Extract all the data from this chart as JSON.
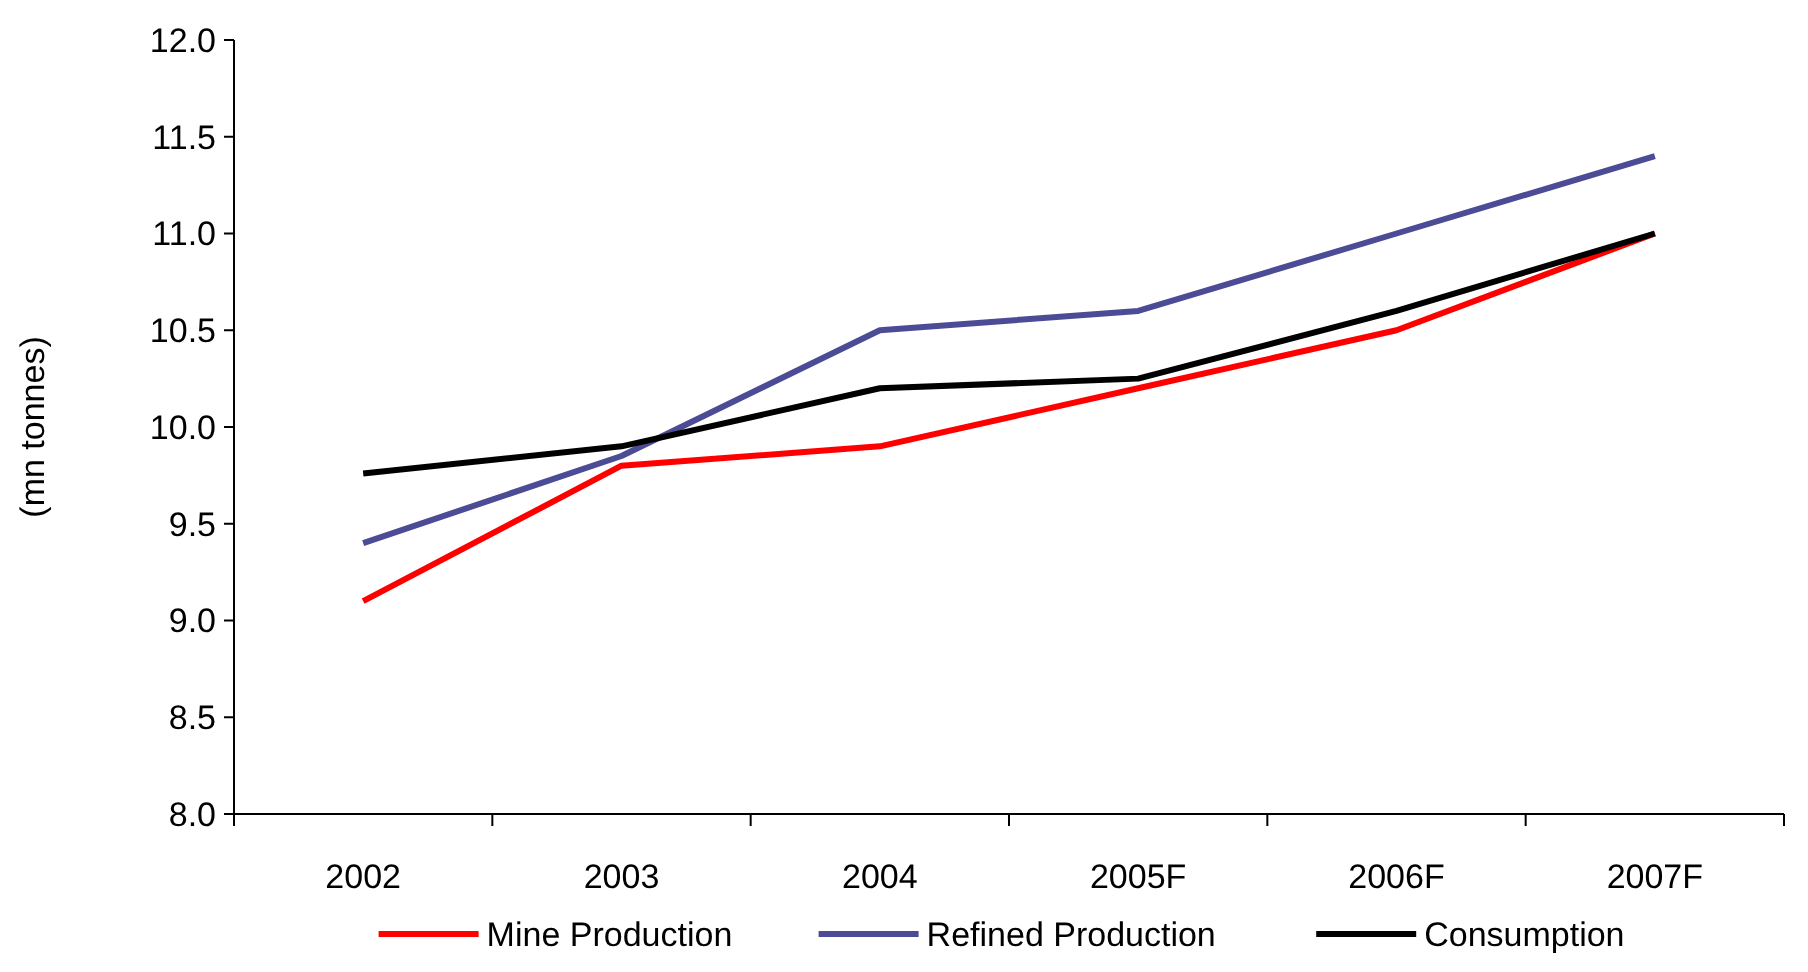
{
  "chart_data": {
    "type": "line",
    "ylabel": "(mn tonnes)",
    "categories": [
      "2002",
      "2003",
      "2004",
      "2005F",
      "2006F",
      "2007F"
    ],
    "series": [
      {
        "name": "Mine Production",
        "color": "#ff0000",
        "values": [
          9.1,
          9.8,
          9.9,
          10.2,
          10.5,
          11.0
        ]
      },
      {
        "name": "Refined Production",
        "color": "#4b4b96",
        "values": [
          9.4,
          9.85,
          10.5,
          10.6,
          11.0,
          11.4
        ]
      },
      {
        "name": "Consumption",
        "color": "#000000",
        "values": [
          9.76,
          9.9,
          10.2,
          10.25,
          10.6,
          11.0
        ]
      }
    ],
    "ylim": [
      8,
      12
    ],
    "yticks": [
      {
        "value": 8,
        "label": "8.0"
      },
      {
        "value": 8.5,
        "label": "8.5"
      },
      {
        "value": 9,
        "label": "9.0"
      },
      {
        "value": 9.5,
        "label": "9.5"
      },
      {
        "value": 10,
        "label": "10.0"
      },
      {
        "value": 10.5,
        "label": "10.5"
      },
      {
        "value": 11,
        "label": "11.0"
      },
      {
        "value": 11.5,
        "label": "11.5"
      },
      {
        "value": 12,
        "label": "12.0"
      }
    ],
    "grid": false,
    "legend": "bottom",
    "marker": "none",
    "line_style": "solid"
  }
}
